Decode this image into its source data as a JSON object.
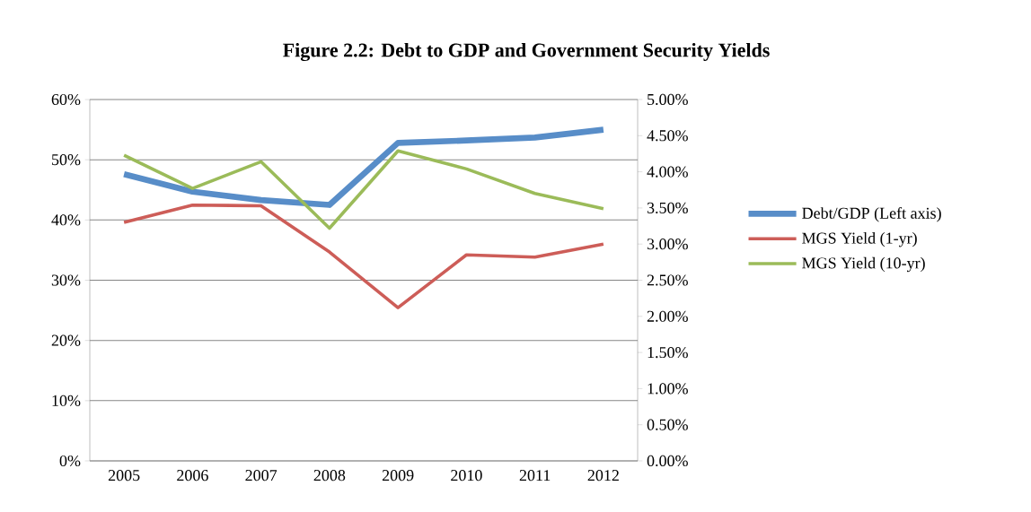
{
  "chart_data": {
    "type": "line",
    "title": "Figure 2.2: Debt to GDP and Government Security Yields",
    "categories": [
      "2005",
      "2006",
      "2007",
      "2008",
      "2009",
      "2010",
      "2011",
      "2012"
    ],
    "series": [
      {
        "name": "Debt/GDP (Left axis)",
        "color": "#588dc8",
        "axis": "y",
        "values": [
          47.6,
          44.7,
          43.3,
          42.5,
          52.8,
          53.2,
          53.7,
          55.0
        ]
      },
      {
        "name": "MGS Yield (1-yr)",
        "color": "#cd5d58",
        "axis": "y2",
        "values": [
          3.3,
          3.54,
          3.53,
          2.89,
          2.12,
          2.85,
          2.82,
          3.0
        ]
      },
      {
        "name": "MGS Yield (10-yr)",
        "color": "#9bbb59",
        "axis": "y2",
        "values": [
          4.23,
          3.77,
          4.14,
          3.22,
          4.29,
          4.04,
          3.7,
          3.49
        ]
      }
    ],
    "ylim": [
      0,
      60
    ],
    "yticks": [
      {
        "value": 0,
        "label": "0%"
      },
      {
        "value": 10,
        "label": "10%"
      },
      {
        "value": 20,
        "label": "20%"
      },
      {
        "value": 30,
        "label": "30%"
      },
      {
        "value": 40,
        "label": "40%"
      },
      {
        "value": 50,
        "label": "50%"
      },
      {
        "value": 60,
        "label": "60%"
      }
    ],
    "y2lim": [
      0,
      5
    ],
    "y2ticks": [
      {
        "value": 0,
        "label": "0.00%"
      },
      {
        "value": 0.5,
        "label": "0.50%"
      },
      {
        "value": 1,
        "label": "1.00%"
      },
      {
        "value": 1.5,
        "label": "1.50%"
      },
      {
        "value": 2,
        "label": "2.00%"
      },
      {
        "value": 2.5,
        "label": "2.50%"
      },
      {
        "value": 3,
        "label": "3.00%"
      },
      {
        "value": 3.5,
        "label": "3.50%"
      },
      {
        "value": 4,
        "label": "4.00%"
      },
      {
        "value": 4.5,
        "label": "4.50%"
      },
      {
        "value": 5,
        "label": "5.00%"
      }
    ],
    "grid": "y",
    "legend": "right",
    "marker": "none",
    "line_style": "solid"
  }
}
